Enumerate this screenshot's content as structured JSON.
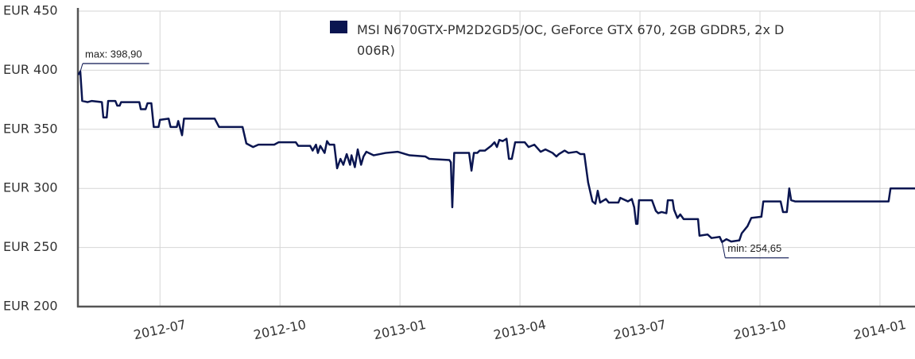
{
  "chart_data": {
    "type": "line",
    "x": [
      2012.329,
      2012.334,
      2012.338,
      2012.349,
      2012.358,
      2012.379,
      2012.382,
      2012.389,
      2012.392,
      2012.407,
      2012.411,
      2012.416,
      2012.419,
      2012.457,
      2012.46,
      2012.47,
      2012.474,
      2012.482,
      2012.487,
      2012.497,
      2012.5,
      2012.518,
      2012.522,
      2012.535,
      2012.538,
      2012.546,
      2012.55,
      2012.614,
      2012.623,
      2012.672,
      2012.68,
      2012.694,
      2012.705,
      2012.738,
      2012.747,
      2012.783,
      2012.788,
      2012.813,
      2012.818,
      2012.825,
      2012.829,
      2012.834,
      2012.843,
      2012.848,
      2012.853,
      2012.863,
      2012.869,
      2012.876,
      2012.882,
      2012.889,
      2012.896,
      2012.899,
      2012.906,
      2012.912,
      2012.919,
      2012.924,
      2012.93,
      2012.945,
      2012.97,
      2012.995,
      2013.02,
      2013.053,
      2013.061,
      2013.103,
      2013.106,
      2013.109,
      2013.113,
      2013.144,
      2013.149,
      2013.154,
      2013.161,
      2013.166,
      2013.177,
      2013.19,
      2013.197,
      2013.202,
      2013.207,
      2013.214,
      2013.222,
      2013.227,
      2013.233,
      2013.24,
      2013.26,
      2013.268,
      2013.28,
      2013.293,
      2013.303,
      2013.318,
      2013.326,
      2013.331,
      2013.343,
      2013.351,
      2013.368,
      2013.376,
      2013.384,
      2013.392,
      2013.401,
      2013.407,
      2013.412,
      2013.417,
      2013.429,
      2013.435,
      2013.455,
      2013.459,
      2013.475,
      2013.483,
      2013.488,
      2013.492,
      2013.495,
      2013.498,
      2013.525,
      2013.533,
      2013.538,
      2013.545,
      2013.555,
      2013.558,
      2013.568,
      2013.571,
      2013.578,
      2013.584,
      2013.591,
      2013.621,
      2013.624,
      2013.641,
      2013.649,
      2013.666,
      2013.671,
      2013.68,
      2013.69,
      2013.707,
      2013.712,
      2013.724,
      2013.732,
      2013.753,
      2013.757,
      2013.793,
      2013.798,
      2013.806,
      2013.811,
      2013.815,
      2013.823,
      2014.018,
      2014.022,
      2014.073
    ],
    "series": [
      {
        "name": "MSI N670GTX-PM2D2GD5/OC, GeForce GTX 670, 2GB GDDR5, 2x D\n006R)",
        "color": "#0a1550",
        "values": [
          396,
          398.9,
          374,
          373,
          374,
          373,
          360,
          360,
          374,
          374,
          370,
          370,
          373,
          373,
          367,
          367,
          372,
          372,
          352,
          352,
          358,
          359,
          352,
          352,
          357,
          345,
          359,
          359,
          352,
          352,
          338,
          335,
          337,
          337,
          339,
          339,
          336,
          336,
          332,
          337,
          330,
          336,
          330,
          340,
          337,
          337,
          317,
          325,
          320,
          329,
          320,
          328,
          318,
          333,
          320,
          327,
          331,
          328,
          330,
          331,
          328,
          327,
          325,
          324,
          322,
          284,
          330,
          330,
          315,
          330,
          330,
          332,
          332,
          336,
          339,
          335,
          341,
          340,
          342,
          325,
          325,
          339,
          339,
          335,
          337,
          331,
          333,
          330,
          327,
          329,
          332,
          330,
          331,
          329,
          329,
          305,
          289,
          287,
          298,
          288,
          291,
          288,
          288,
          292,
          289,
          291,
          284,
          270,
          270,
          290,
          290,
          281,
          279,
          280,
          279,
          290,
          290,
          282,
          275,
          278,
          274,
          274,
          260,
          261,
          258,
          259,
          254.65,
          257,
          255,
          256,
          262,
          268,
          275,
          276,
          289,
          289,
          280,
          280,
          300,
          290,
          289,
          289,
          300,
          300
        ]
      }
    ],
    "xlim": [
      2012.329,
      2014.073
    ],
    "xticks": [
      {
        "value": 2012.5,
        "label": "2012-07"
      },
      {
        "value": 2012.75,
        "label": "2012-10"
      },
      {
        "value": 2013.0,
        "label": "2013-01"
      },
      {
        "value": 2013.25,
        "label": "2013-04"
      },
      {
        "value": 2013.5,
        "label": "2013-07"
      },
      {
        "value": 2013.75,
        "label": "2013-10"
      },
      {
        "value": 2014.0,
        "label": "2014-01"
      }
    ],
    "ylim": [
      200,
      450
    ],
    "yticks": [
      {
        "value": 200,
        "label": "EUR 200"
      },
      {
        "value": 250,
        "label": "EUR 250"
      },
      {
        "value": 300,
        "label": "EUR 300"
      },
      {
        "value": 350,
        "label": "EUR 350"
      },
      {
        "value": 400,
        "label": "EUR 400"
      },
      {
        "value": 450,
        "label": "EUR 450"
      }
    ],
    "grid": true,
    "annotations": [
      {
        "text": "max: 398,90",
        "x": 2012.334,
        "y": 398.9
      },
      {
        "text": "min: 254,65",
        "x": 2013.671,
        "y": 254.65
      }
    ]
  }
}
